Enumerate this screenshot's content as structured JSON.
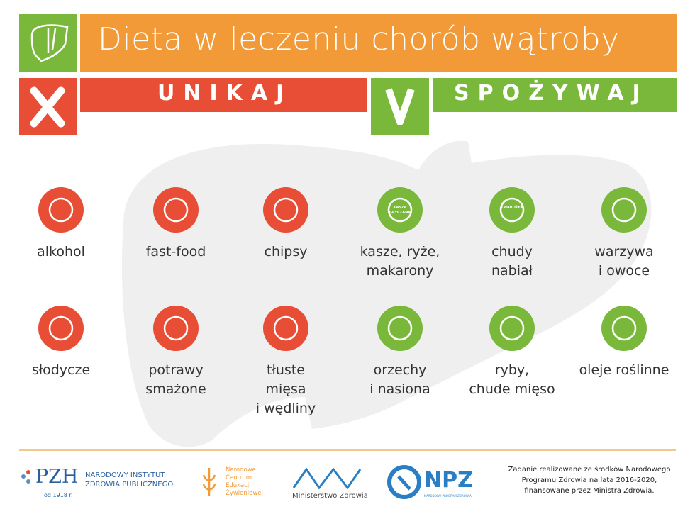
{
  "header": {
    "title": "Dieta w leczeniu chorób wątroby"
  },
  "avoid": {
    "label": "UNIKAJ",
    "items": [
      {
        "lines": [
          "alkohol"
        ]
      },
      {
        "lines": [
          "fast-food"
        ]
      },
      {
        "lines": [
          "chipsy"
        ]
      },
      {
        "lines": [
          "słodycze"
        ]
      },
      {
        "lines": [
          "potrawy",
          "smażone"
        ]
      },
      {
        "lines": [
          "tłuste",
          "mięsa",
          "i wędliny"
        ]
      }
    ]
  },
  "eat": {
    "label": "SPOŻYWAJ",
    "items": [
      {
        "lines": [
          "kasze, ryże,",
          "makarony"
        ],
        "icon_text": [
          "KASZA",
          "GRYCZANA"
        ]
      },
      {
        "lines": [
          "chudy",
          "nabiał"
        ],
        "icon_text": [
          "TWAROŻEK"
        ]
      },
      {
        "lines": [
          "warzywa",
          "i owoce"
        ]
      },
      {
        "lines": [
          "orzechy",
          "i nasiona"
        ]
      },
      {
        "lines": [
          "ryby,",
          "chude mięso"
        ]
      },
      {
        "lines": [
          "oleje roślinne"
        ]
      }
    ]
  },
  "footer": {
    "pzh": {
      "logo": "PZH",
      "name": [
        "NARODOWY INSTYTUT",
        "ZDROWIA PUBLICZNEGO"
      ],
      "since": "od 1918 r."
    },
    "ncez": {
      "name": [
        "Narodowe",
        "Centrum",
        "Edukacji",
        "Żywieniowej"
      ]
    },
    "mz": {
      "name": "Ministerstwo Zdrowia"
    },
    "npz": {
      "logo": "NPZ",
      "name": "NARODOWY PROGRAM ZDROWIA"
    },
    "note": [
      "Zadanie realizowane ze środków Narodowego",
      "Programu Zdrowia na lata 2016-2020,",
      "finansowane przez Ministra Zdrowia."
    ]
  }
}
